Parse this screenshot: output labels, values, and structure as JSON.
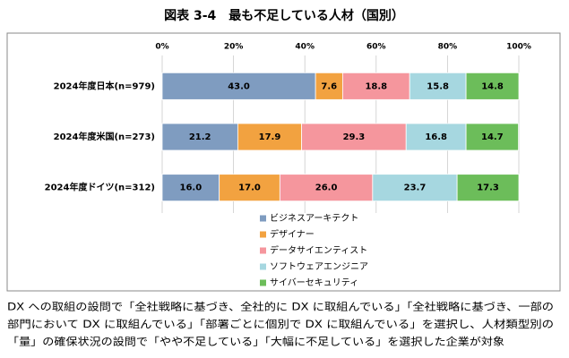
{
  "chart_data": {
    "type": "stacked-bar-horizontal",
    "title": "図表 3-4　最も不足している人材（国別）",
    "categories": [
      "2024年度日本(n=979)",
      "2024年度米国(n=273)",
      "2024年度ドイツ(n=312)"
    ],
    "series": [
      {
        "name": "ビジネスアーキテクト",
        "color": "#7f9cc0",
        "values": [
          43.0,
          21.2,
          16.0
        ],
        "value_labels": [
          "43.0",
          "21.2",
          "16.0"
        ]
      },
      {
        "name": "デザイナー",
        "color": "#f2a240",
        "values": [
          7.6,
          17.9,
          17.0
        ],
        "value_labels": [
          "7.6",
          "17.9",
          "17.0"
        ]
      },
      {
        "name": "データサイエンティスト",
        "color": "#f5969d",
        "values": [
          18.8,
          29.3,
          26.0
        ],
        "value_labels": [
          "18.8",
          "29.3",
          "26.0"
        ]
      },
      {
        "name": "ソフトウェアエンジニア",
        "color": "#a6d7e0",
        "values": [
          15.8,
          16.8,
          23.7
        ],
        "value_labels": [
          "15.8",
          "16.8",
          "23.7"
        ]
      },
      {
        "name": "サイバーセキュリティ",
        "color": "#6cbd5a",
        "values": [
          14.8,
          14.7,
          17.3
        ],
        "value_labels": [
          "14.8",
          "14.7",
          "17.3"
        ]
      }
    ],
    "xlim": [
      0,
      100
    ],
    "xticks": [
      {
        "value": 0,
        "label": "0%"
      },
      {
        "value": 20,
        "label": "20%"
      },
      {
        "value": 40,
        "label": "40%"
      },
      {
        "value": 60,
        "label": "60%"
      },
      {
        "value": 80,
        "label": "80%"
      },
      {
        "value": 100,
        "label": "100%"
      }
    ],
    "grid": true,
    "note": [
      "DX への取組の設問で「全社戦略に基づき、全社的に DX に取組んでいる」「全社戦略に基づき、一部の",
      "部門において DX に取組んでいる」「部署ごとに個別で DX に取組んでいる」を選択し、人材類型別の",
      "「量」の確保状況の設問で「やや不足している」「大幅に不足している」を選択した企業が対象"
    ]
  }
}
